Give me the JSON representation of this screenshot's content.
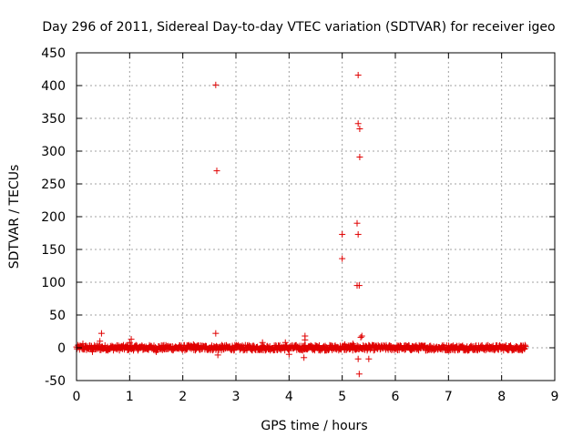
{
  "chart_data": {
    "type": "scatter",
    "title": "Day 296 of 2011, Sidereal Day-to-day VTEC variation (SDTVAR) for receiver igeo",
    "xlabel": "GPS time / hours",
    "ylabel": "SDTVAR / TECUs",
    "xlim": [
      0,
      9
    ],
    "ylim": [
      -50,
      450
    ],
    "x_ticks": [
      0,
      1,
      2,
      3,
      4,
      5,
      6,
      7,
      8,
      9
    ],
    "y_ticks": [
      -50,
      0,
      50,
      100,
      150,
      200,
      250,
      300,
      350,
      400,
      450
    ],
    "grid": true,
    "marker": "+",
    "color": "#e00000",
    "dense_band": {
      "x_start": 0.0,
      "x_end": 8.45,
      "y_center": 0,
      "y_spread": 4
    },
    "series": [
      {
        "name": "SDTVAR",
        "points": [
          [
            2.62,
            401
          ],
          [
            2.64,
            270
          ],
          [
            2.62,
            22
          ],
          [
            2.66,
            -11
          ],
          [
            5.3,
            416
          ],
          [
            5.3,
            342
          ],
          [
            5.33,
            334
          ],
          [
            5.33,
            291
          ],
          [
            5.28,
            190
          ],
          [
            5.3,
            173
          ],
          [
            5.0,
            173
          ],
          [
            5.0,
            136
          ],
          [
            5.28,
            95
          ],
          [
            5.32,
            95
          ],
          [
            5.37,
            18
          ],
          [
            5.35,
            16
          ],
          [
            5.3,
            -17
          ],
          [
            5.5,
            -17
          ],
          [
            5.32,
            -40
          ],
          [
            0.47,
            22
          ],
          [
            0.44,
            10
          ],
          [
            1.03,
            13
          ],
          [
            1.0,
            8
          ],
          [
            3.5,
            8
          ],
          [
            4.3,
            18
          ],
          [
            4.28,
            -15
          ],
          [
            4.3,
            12
          ],
          [
            3.93,
            8
          ],
          [
            4.0,
            -10
          ],
          [
            1.5,
            -6
          ],
          [
            2.2,
            5
          ],
          [
            0.3,
            -6
          ],
          [
            0.12,
            6
          ],
          [
            5.05,
            5
          ],
          [
            5.2,
            6
          ]
        ]
      }
    ]
  }
}
